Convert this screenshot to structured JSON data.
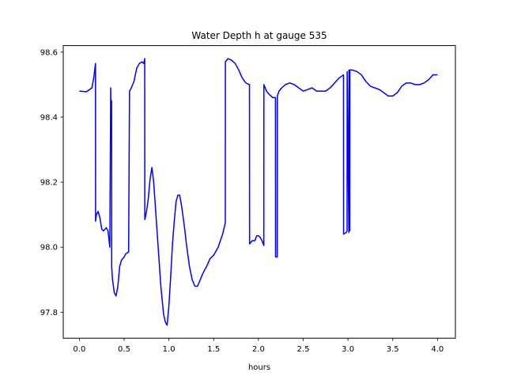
{
  "chart_data": {
    "type": "line",
    "title": "Water Depth h at gauge 535",
    "xlabel": "hours",
    "ylabel": "",
    "xlim": [
      -0.18,
      4.2
    ],
    "ylim": [
      97.72,
      98.62
    ],
    "x_ticks": [
      0.0,
      0.5,
      1.0,
      1.5,
      2.0,
      2.5,
      3.0,
      3.5,
      4.0
    ],
    "x_tick_labels": [
      "0.0",
      "0.5",
      "1.0",
      "1.5",
      "2.0",
      "2.5",
      "3.0",
      "3.5",
      "4.0"
    ],
    "y_ticks": [
      97.8,
      98.0,
      98.2,
      98.4,
      98.6
    ],
    "y_tick_labels": [
      "97.8",
      "98.0",
      "98.2",
      "98.4",
      "98.6"
    ],
    "grid": false,
    "series": [
      {
        "color": "#0000ff",
        "x": [
          0.0,
          0.08,
          0.14,
          0.16,
          0.18,
          0.181,
          0.19,
          0.21,
          0.23,
          0.25,
          0.27,
          0.3,
          0.32,
          0.34,
          0.35,
          0.351,
          0.36,
          0.361,
          0.37,
          0.39,
          0.41,
          0.43,
          0.45,
          0.47,
          0.5,
          0.52,
          0.55,
          0.56,
          0.561,
          0.58,
          0.61,
          0.64,
          0.67,
          0.7,
          0.72,
          0.73,
          0.731,
          0.75,
          0.77,
          0.79,
          0.81,
          0.83,
          0.85,
          0.88,
          0.91,
          0.94,
          0.96,
          0.98,
          1.0,
          1.02,
          1.04,
          1.06,
          1.08,
          1.1,
          1.12,
          1.14,
          1.17,
          1.2,
          1.23,
          1.26,
          1.29,
          1.32,
          1.35,
          1.38,
          1.42,
          1.46,
          1.5,
          1.55,
          1.6,
          1.63,
          1.631,
          1.66,
          1.7,
          1.74,
          1.78,
          1.82,
          1.86,
          1.9,
          1.901,
          1.93,
          1.96,
          1.98,
          2.0,
          2.02,
          2.04,
          2.06,
          2.061,
          2.09,
          2.12,
          2.16,
          2.19,
          2.191,
          2.21,
          2.211,
          2.23,
          2.26,
          2.3,
          2.35,
          2.4,
          2.45,
          2.5,
          2.55,
          2.6,
          2.65,
          2.7,
          2.75,
          2.8,
          2.85,
          2.9,
          2.95,
          2.951,
          2.98,
          2.99,
          2.991,
          3.01,
          3.011,
          3.02,
          3.021,
          3.05,
          3.1,
          3.15,
          3.2,
          3.25,
          3.3,
          3.35,
          3.4,
          3.45,
          3.5,
          3.55,
          3.6,
          3.65,
          3.7,
          3.75,
          3.8,
          3.85,
          3.9,
          3.95,
          4.0
        ],
        "y": [
          98.48,
          98.478,
          98.49,
          98.52,
          98.565,
          98.08,
          98.1,
          98.11,
          98.09,
          98.055,
          98.05,
          98.06,
          98.05,
          98.0,
          98.49,
          98.45,
          98.45,
          97.94,
          97.9,
          97.86,
          97.85,
          97.88,
          97.94,
          97.96,
          97.97,
          97.98,
          97.985,
          98.48,
          98.48,
          98.49,
          98.51,
          98.55,
          98.565,
          98.57,
          98.565,
          98.58,
          98.085,
          98.11,
          98.15,
          98.21,
          98.245,
          98.2,
          98.12,
          98.0,
          97.88,
          97.795,
          97.77,
          97.76,
          97.82,
          97.91,
          98.01,
          98.08,
          98.14,
          98.16,
          98.16,
          98.13,
          98.07,
          98.0,
          97.94,
          97.9,
          97.88,
          97.88,
          97.9,
          97.92,
          97.94,
          97.965,
          97.975,
          98.0,
          98.04,
          98.075,
          98.57,
          98.58,
          98.575,
          98.565,
          98.545,
          98.52,
          98.505,
          98.5,
          98.01,
          98.02,
          98.02,
          98.035,
          98.035,
          98.03,
          98.02,
          98.005,
          98.5,
          98.48,
          98.47,
          98.46,
          98.46,
          97.97,
          97.97,
          98.465,
          98.48,
          98.49,
          98.5,
          98.505,
          98.5,
          98.49,
          98.48,
          98.485,
          98.49,
          98.48,
          98.48,
          98.48,
          98.49,
          98.505,
          98.52,
          98.53,
          98.04,
          98.045,
          98.05,
          98.54,
          98.045,
          98.545,
          98.05,
          98.545,
          98.545,
          98.54,
          98.53,
          98.51,
          98.495,
          98.49,
          98.485,
          98.475,
          98.465,
          98.465,
          98.475,
          98.495,
          98.505,
          98.505,
          98.5,
          98.5,
          98.505,
          98.515,
          98.53,
          98.53
        ]
      }
    ]
  }
}
